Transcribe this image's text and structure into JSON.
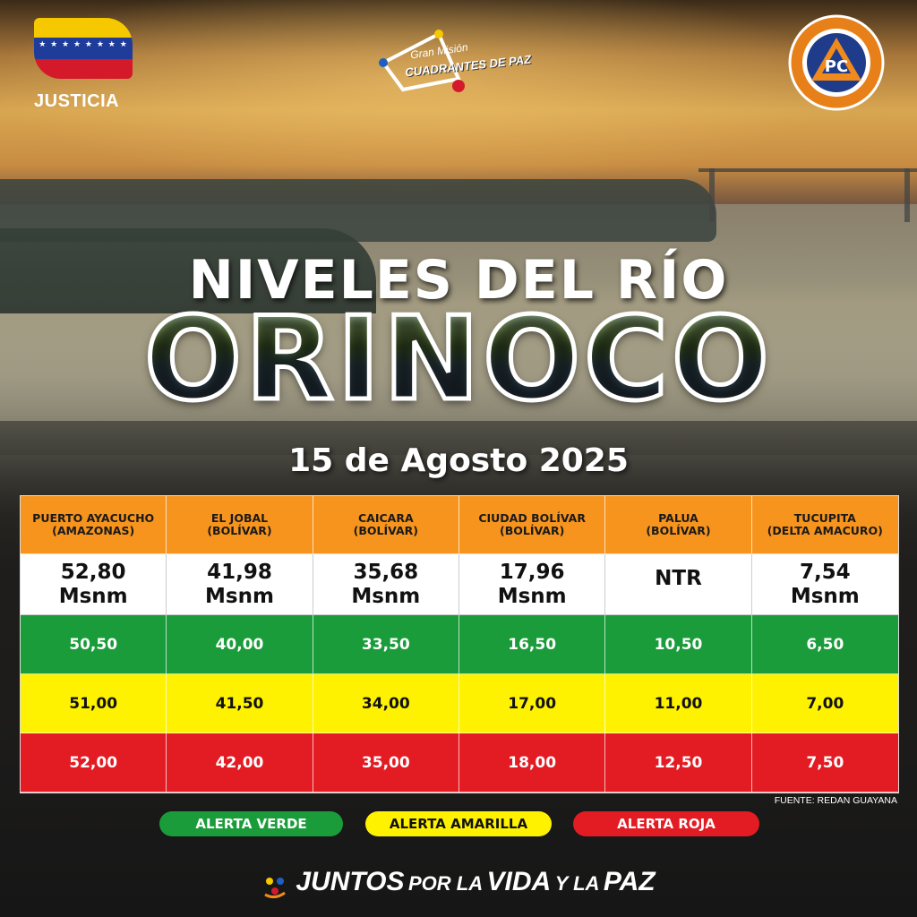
{
  "logos": {
    "left_label": "JUSTICIA",
    "center_small": "Gran Misión",
    "center_big": "CUADRANTES DE PAZ",
    "right_initials": "PC",
    "right_ring": "PROTECCIÓN CIVIL Y ADMINISTRACIÓN DE DESASTRES",
    "right_country": "VENEZUELA"
  },
  "title_line1": "NIVELES DEL RÍO",
  "title_line2": "ORINOCO",
  "date": "15 de Agosto 2025",
  "table": {
    "columns": [
      {
        "name": "PUERTO AYACUCHO",
        "region": "(AMAZONAS)",
        "current_value": "52,80",
        "current_unit": "Msnm",
        "green": "50,50",
        "yellow": "51,00",
        "red": "52,00"
      },
      {
        "name": "EL JOBAL",
        "region": "(BOLÍVAR)",
        "current_value": "41,98",
        "current_unit": "Msnm",
        "green": "40,00",
        "yellow": "41,50",
        "red": "42,00"
      },
      {
        "name": "CAICARA",
        "region": "(BOLÍVAR)",
        "current_value": "35,68",
        "current_unit": "Msnm",
        "green": "33,50",
        "yellow": "34,00",
        "red": "35,00"
      },
      {
        "name": "CIUDAD BOLÍVAR",
        "region": "(BOLÍVAR)",
        "current_value": "17,96",
        "current_unit": "Msnm",
        "green": "16,50",
        "yellow": "17,00",
        "red": "18,00"
      },
      {
        "name": "PALUA",
        "region": "(BOLÍVAR)",
        "current_value": "NTR",
        "current_unit": "",
        "green": "10,50",
        "yellow": "11,00",
        "red": "12,50"
      },
      {
        "name": "TUCUPITA",
        "region": "(DELTA AMACURO)",
        "current_value": "7,54",
        "current_unit": "Msnm",
        "green": "6,50",
        "yellow": "7,00",
        "red": "7,50"
      }
    ]
  },
  "source": "FUENTE: REDAN GUAYANA",
  "legend": {
    "green": "ALERTA VERDE",
    "yellow": "ALERTA AMARILLA",
    "red": "ALERTA ROJA"
  },
  "footer": {
    "w1": "JUNTOS",
    "w2": "POR LA",
    "w3": "VIDA",
    "w4": "Y LA",
    "w5": "PAZ"
  },
  "colors": {
    "header_orange": "#f7941d",
    "alert_green": "#1a9c3a",
    "alert_yellow": "#fff200",
    "alert_red": "#e31b23"
  },
  "icons": [
    "venezuela-flag-icon",
    "cuadrantes-de-paz-logo-icon",
    "proteccion-civil-badge-icon",
    "juntos-logo-icon"
  ]
}
